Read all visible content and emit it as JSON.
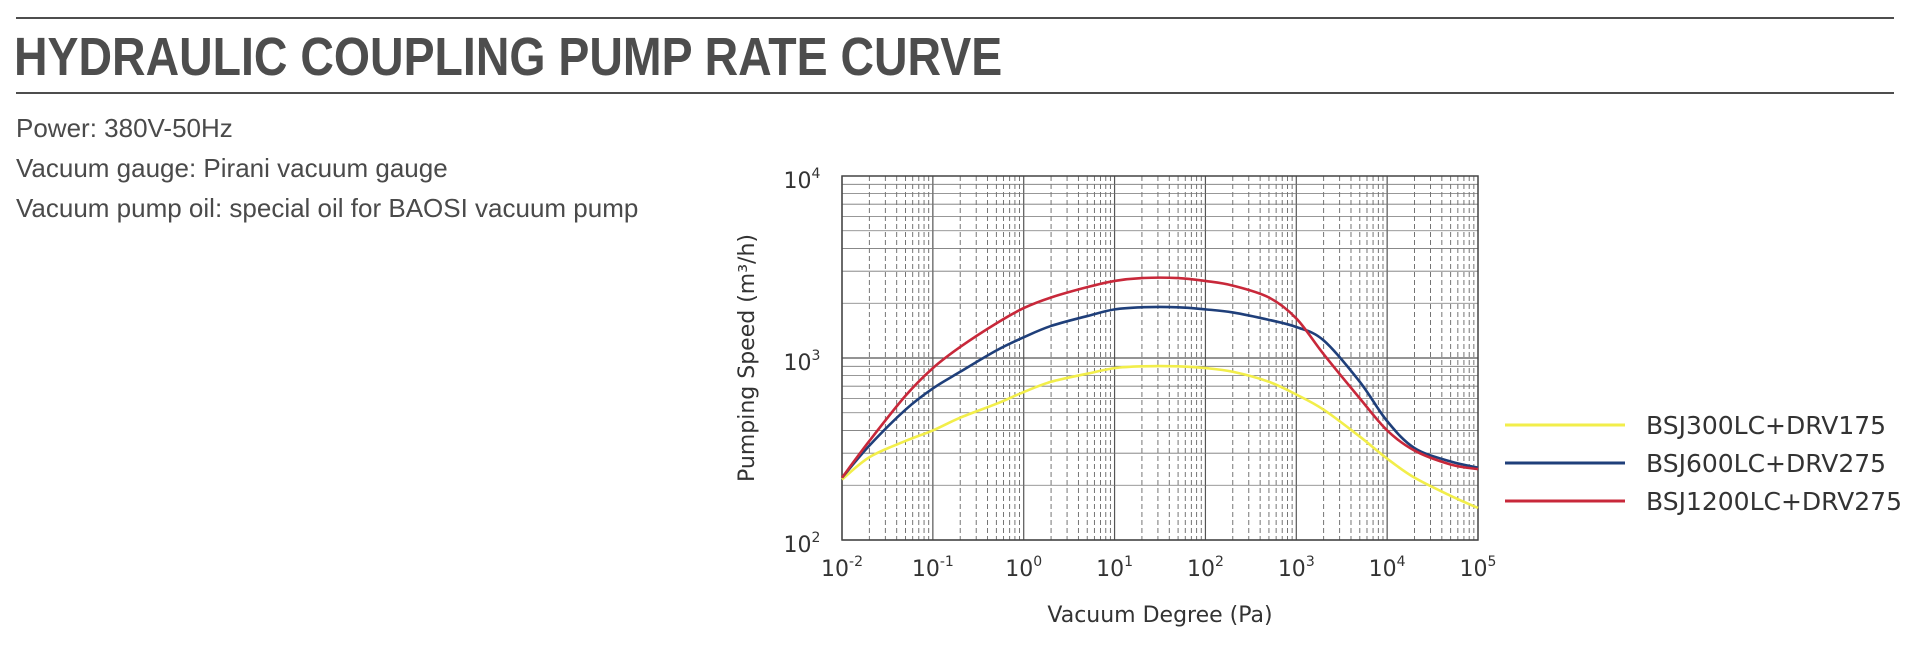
{
  "header": {
    "title": "HYDRAULIC COUPLING PUMP RATE CURVE"
  },
  "specs": {
    "power": "Power: 380V-50Hz",
    "gauge": "Vacuum gauge: Pirani vacuum gauge",
    "oil": "Vacuum pump oil: special oil for BAOSI vacuum pump"
  },
  "chart_data": {
    "type": "line",
    "xlabel": "Vacuum Degree (Pa)",
    "ylabel": "Pumping Speed (m³/h)",
    "xscale": "log",
    "yscale": "log",
    "xlim": [
      0.01,
      100000
    ],
    "ylim": [
      100,
      10000
    ],
    "x_ticks": [
      {
        "base": "10",
        "exp": "-2"
      },
      {
        "base": "10",
        "exp": "-1"
      },
      {
        "base": "10",
        "exp": "0"
      },
      {
        "base": "10",
        "exp": "1"
      },
      {
        "base": "10",
        "exp": "2"
      },
      {
        "base": "10",
        "exp": "3"
      },
      {
        "base": "10",
        "exp": "4"
      },
      {
        "base": "10",
        "exp": "5"
      }
    ],
    "y_ticks": [
      {
        "base": "10",
        "exp": "2"
      },
      {
        "base": "10",
        "exp": "3"
      },
      {
        "base": "10",
        "exp": "4"
      }
    ],
    "grid": true,
    "legend_position": "right",
    "series": [
      {
        "name": "BSJ300LC+DRV175",
        "color": "#f2ee4a",
        "x": [
          0.01,
          0.02,
          0.05,
          0.1,
          0.2,
          0.5,
          1,
          2,
          5,
          10,
          20,
          50,
          100,
          200,
          500,
          1000,
          2000,
          5000,
          10000,
          20000,
          50000,
          100000
        ],
        "y": [
          215,
          285,
          350,
          400,
          470,
          560,
          650,
          740,
          820,
          880,
          900,
          900,
          880,
          840,
          740,
          630,
          520,
          370,
          280,
          220,
          175,
          150
        ]
      },
      {
        "name": "BSJ600LC+DRV275",
        "color": "#1f3f7a",
        "x": [
          0.01,
          0.02,
          0.05,
          0.1,
          0.2,
          0.5,
          1,
          2,
          5,
          10,
          20,
          50,
          100,
          200,
          500,
          1000,
          2000,
          5000,
          10000,
          20000,
          50000,
          100000
        ],
        "y": [
          220,
          330,
          520,
          680,
          840,
          1100,
          1300,
          1500,
          1700,
          1850,
          1900,
          1900,
          1850,
          1780,
          1620,
          1480,
          1250,
          740,
          450,
          320,
          270,
          250
        ]
      },
      {
        "name": "BSJ1200LC+DRV275",
        "color": "#c8283a",
        "x": [
          0.01,
          0.02,
          0.05,
          0.1,
          0.2,
          0.5,
          1,
          2,
          5,
          10,
          20,
          50,
          100,
          200,
          500,
          1000,
          2000,
          5000,
          10000,
          20000,
          50000,
          100000
        ],
        "y": [
          220,
          350,
          620,
          880,
          1150,
          1550,
          1880,
          2150,
          2450,
          2650,
          2750,
          2750,
          2650,
          2500,
          2150,
          1650,
          1050,
          600,
          400,
          310,
          260,
          245
        ]
      }
    ]
  }
}
